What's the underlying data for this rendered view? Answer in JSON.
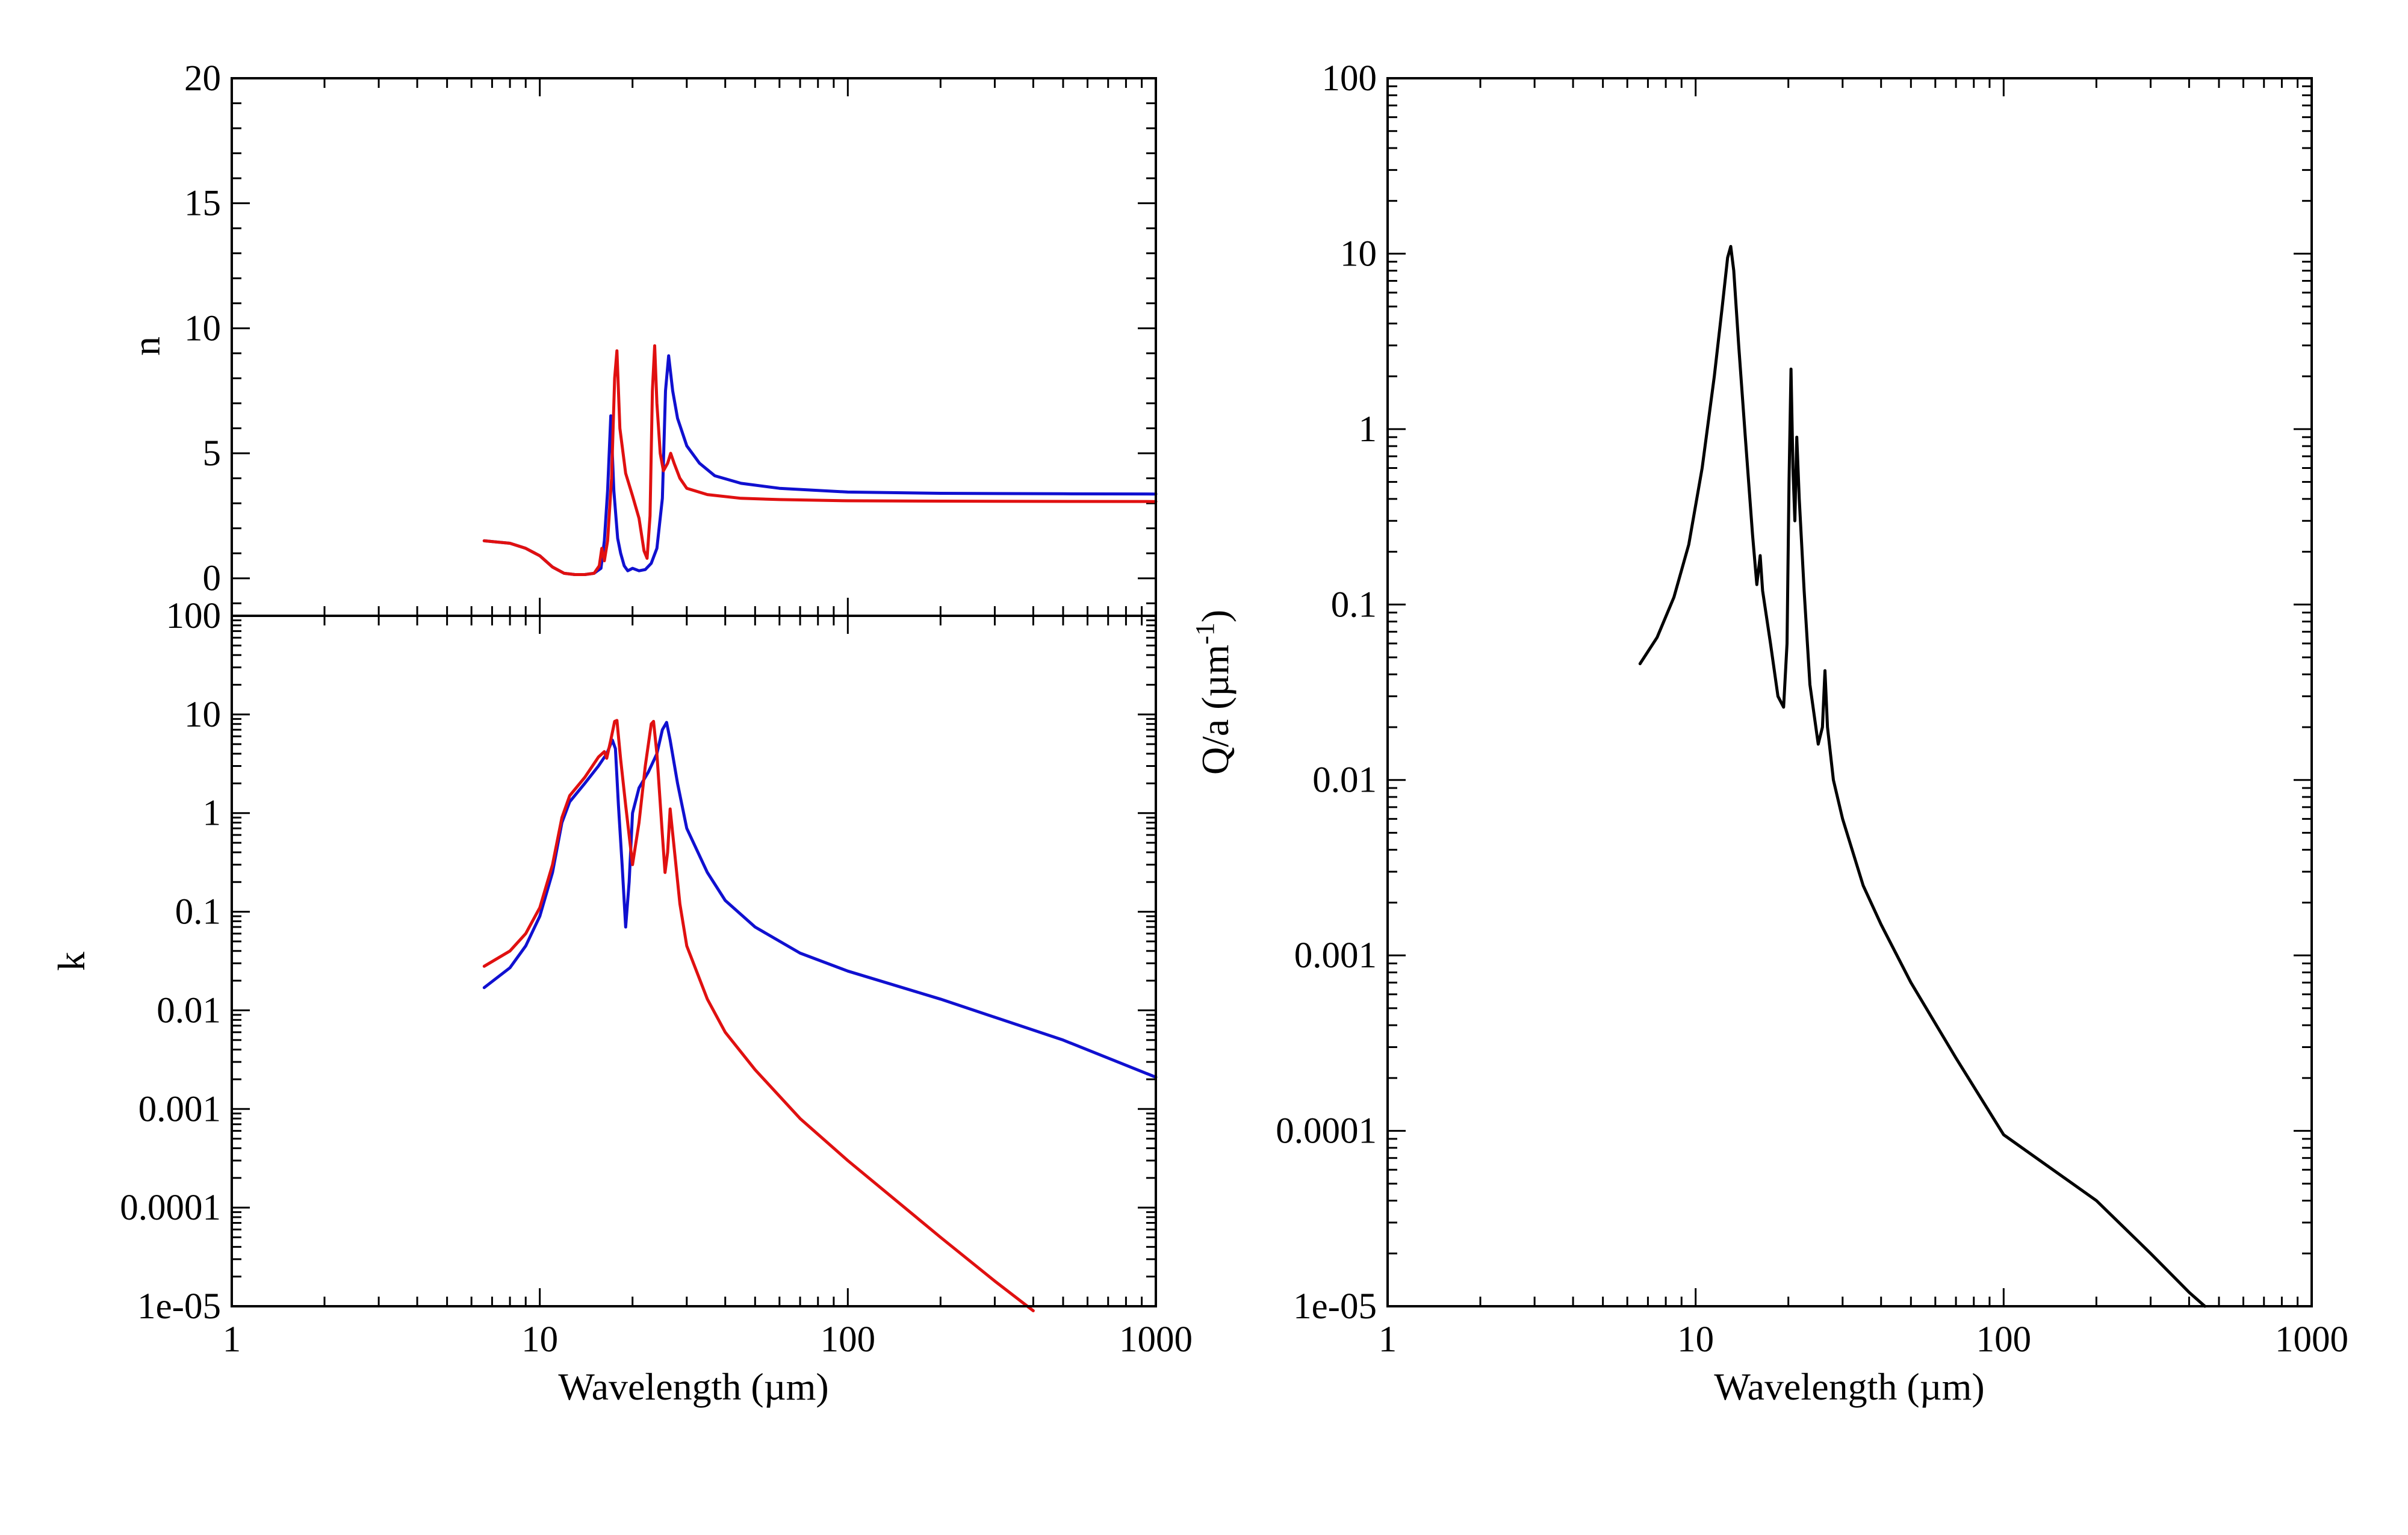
{
  "colors": {
    "blue": "#1010d0",
    "red": "#e01010",
    "black": "#000000"
  },
  "chart_data": [
    {
      "type": "line",
      "panel": "top-left",
      "title": "",
      "xlabel": "",
      "ylabel": "n",
      "xscale": "log",
      "yscale": "linear",
      "xlim": [
        1,
        1000
      ],
      "ylim": [
        -1.5,
        20
      ],
      "yticks": [
        0,
        5,
        10,
        15,
        20
      ],
      "yticklabels": [
        "0",
        "5",
        "10",
        "15",
        "20"
      ],
      "grid": false,
      "series": [
        {
          "color": "#1010d0",
          "points": [
            [
              6.6,
              1.5
            ],
            [
              8,
              1.4
            ],
            [
              9,
              1.2
            ],
            [
              10,
              0.9
            ],
            [
              11,
              0.45
            ],
            [
              12,
              0.2
            ],
            [
              13,
              0.15
            ],
            [
              14,
              0.15
            ],
            [
              15,
              0.2
            ],
            [
              15.8,
              0.4
            ],
            [
              16.2,
              1.5
            ],
            [
              16.6,
              3.5
            ],
            [
              17,
              6.5
            ],
            [
              17.4,
              3.5
            ],
            [
              17.9,
              1.6
            ],
            [
              18.3,
              1.0
            ],
            [
              18.8,
              0.5
            ],
            [
              19.3,
              0.3
            ],
            [
              20,
              0.4
            ],
            [
              21,
              0.3
            ],
            [
              22,
              0.35
            ],
            [
              23,
              0.6
            ],
            [
              24,
              1.2
            ],
            [
              25,
              3.2
            ],
            [
              25.6,
              7.5
            ],
            [
              26.2,
              8.9
            ],
            [
              27,
              7.5
            ],
            [
              28,
              6.4
            ],
            [
              30,
              5.3
            ],
            [
              33,
              4.6
            ],
            [
              37,
              4.1
            ],
            [
              45,
              3.8
            ],
            [
              60,
              3.6
            ],
            [
              100,
              3.45
            ],
            [
              200,
              3.4
            ],
            [
              500,
              3.38
            ],
            [
              1000,
              3.37
            ]
          ]
        },
        {
          "color": "#e01010",
          "points": [
            [
              6.6,
              1.5
            ],
            [
              8,
              1.4
            ],
            [
              9,
              1.2
            ],
            [
              10,
              0.9
            ],
            [
              11,
              0.45
            ],
            [
              12,
              0.2
            ],
            [
              13,
              0.15
            ],
            [
              14,
              0.15
            ],
            [
              15,
              0.2
            ],
            [
              15.6,
              0.5
            ],
            [
              15.9,
              1.2
            ],
            [
              16.2,
              0.7
            ],
            [
              16.6,
              1.5
            ],
            [
              17.1,
              4.0
            ],
            [
              17.5,
              8.0
            ],
            [
              17.8,
              9.1
            ],
            [
              18.2,
              6.0
            ],
            [
              19,
              4.2
            ],
            [
              20,
              3.3
            ],
            [
              21,
              2.4
            ],
            [
              21.8,
              1.1
            ],
            [
              22.3,
              0.8
            ],
            [
              22.8,
              2.5
            ],
            [
              23.2,
              7.5
            ],
            [
              23.6,
              9.3
            ],
            [
              24,
              7.0
            ],
            [
              24.6,
              5.0
            ],
            [
              25.2,
              4.3
            ],
            [
              26,
              4.6
            ],
            [
              26.6,
              5.0
            ],
            [
              27.3,
              4.6
            ],
            [
              28.5,
              4.0
            ],
            [
              30,
              3.6
            ],
            [
              35,
              3.35
            ],
            [
              45,
              3.2
            ],
            [
              60,
              3.15
            ],
            [
              100,
              3.1
            ],
            [
              300,
              3.08
            ],
            [
              1000,
              3.07
            ]
          ]
        }
      ]
    },
    {
      "type": "line",
      "panel": "bottom-left",
      "title": "",
      "xlabel": "Wavelength (µm)",
      "ylabel": "k",
      "xscale": "log",
      "yscale": "log",
      "xlim": [
        1,
        1000
      ],
      "ylim": [
        1e-05,
        100
      ],
      "xticks": [
        1,
        10,
        100,
        1000
      ],
      "xticklabels": [
        "1",
        "10",
        "100",
        "1000"
      ],
      "yticks": [
        1e-05,
        0.0001,
        0.001,
        0.01,
        0.1,
        1,
        10,
        100
      ],
      "yticklabels": [
        "1e-05",
        "0.0001",
        "0.001",
        "0.01",
        "0.1",
        "1",
        "10",
        "100"
      ],
      "grid": false,
      "series": [
        {
          "color": "#1010d0",
          "points": [
            [
              6.6,
              0.017
            ],
            [
              8,
              0.027
            ],
            [
              9,
              0.045
            ],
            [
              10,
              0.09
            ],
            [
              11,
              0.25
            ],
            [
              11.8,
              0.8
            ],
            [
              12.5,
              1.3
            ],
            [
              14,
              2.0
            ],
            [
              15.5,
              3.0
            ],
            [
              16.5,
              4.0
            ],
            [
              17.2,
              5.5
            ],
            [
              17.6,
              4.5
            ],
            [
              18,
              1.2
            ],
            [
              18.5,
              0.3
            ],
            [
              19,
              0.07
            ],
            [
              19.5,
              0.2
            ],
            [
              20,
              1.0
            ],
            [
              21,
              1.8
            ],
            [
              22.5,
              2.6
            ],
            [
              24,
              4.0
            ],
            [
              25,
              7.0
            ],
            [
              25.8,
              8.3
            ],
            [
              26.5,
              5.5
            ],
            [
              28,
              2.0
            ],
            [
              30,
              0.7
            ],
            [
              35,
              0.25
            ],
            [
              40,
              0.13
            ],
            [
              50,
              0.07
            ],
            [
              70,
              0.038
            ],
            [
              100,
              0.025
            ],
            [
              200,
              0.013
            ],
            [
              500,
              0.005
            ],
            [
              1000,
              0.0021
            ]
          ]
        },
        {
          "color": "#e01010",
          "points": [
            [
              6.6,
              0.028
            ],
            [
              8,
              0.04
            ],
            [
              9,
              0.06
            ],
            [
              10,
              0.11
            ],
            [
              11,
              0.3
            ],
            [
              11.8,
              0.9
            ],
            [
              12.5,
              1.5
            ],
            [
              14,
              2.3
            ],
            [
              15.5,
              3.7
            ],
            [
              16.2,
              4.2
            ],
            [
              16.5,
              3.6
            ],
            [
              17,
              5.5
            ],
            [
              17.5,
              8.5
            ],
            [
              17.8,
              8.7
            ],
            [
              18.3,
              3.5
            ],
            [
              19,
              1.2
            ],
            [
              20,
              0.3
            ],
            [
              21,
              0.8
            ],
            [
              22,
              3.0
            ],
            [
              23,
              8.0
            ],
            [
              23.4,
              8.5
            ],
            [
              24,
              4.0
            ],
            [
              25,
              0.6
            ],
            [
              25.5,
              0.25
            ],
            [
              26,
              0.4
            ],
            [
              26.5,
              1.1
            ],
            [
              27.2,
              0.5
            ],
            [
              28.5,
              0.12
            ],
            [
              30,
              0.045
            ],
            [
              35,
              0.013
            ],
            [
              40,
              0.006
            ],
            [
              50,
              0.0025
            ],
            [
              70,
              0.0008
            ],
            [
              100,
              0.0003
            ],
            [
              200,
              5e-05
            ],
            [
              300,
              1.8e-05
            ],
            [
              400,
              9e-06
            ]
          ]
        }
      ]
    },
    {
      "type": "line",
      "panel": "right",
      "title": "",
      "xlabel": "Wavelength (µm)",
      "ylabel_main": "Q/a (µm",
      "ylabel_sup": "-1",
      "ylabel_end": ")",
      "xscale": "log",
      "yscale": "log",
      "xlim": [
        1,
        1000
      ],
      "ylim": [
        1e-05,
        100
      ],
      "xticks": [
        1,
        10,
        100,
        1000
      ],
      "xticklabels": [
        "1",
        "10",
        "100",
        "1000"
      ],
      "yticks": [
        1e-05,
        0.0001,
        0.001,
        0.01,
        0.1,
        1,
        10,
        100
      ],
      "yticklabels": [
        "1e-05",
        "0.0001",
        "0.001",
        "0.01",
        "0.1",
        "1",
        "10",
        "100"
      ],
      "grid": false,
      "series": [
        {
          "color": "#000000",
          "points": [
            [
              6.6,
              0.046
            ],
            [
              7.5,
              0.065
            ],
            [
              8.5,
              0.11
            ],
            [
              9.5,
              0.22
            ],
            [
              10.5,
              0.6
            ],
            [
              11.5,
              2.0
            ],
            [
              12.2,
              5.0
            ],
            [
              12.7,
              9.5
            ],
            [
              13,
              11.0
            ],
            [
              13.3,
              8.0
            ],
            [
              13.8,
              3.0
            ],
            [
              14.5,
              0.9
            ],
            [
              15.3,
              0.25
            ],
            [
              15.8,
              0.13
            ],
            [
              16.2,
              0.19
            ],
            [
              16.5,
              0.12
            ],
            [
              17.5,
              0.06
            ],
            [
              18.5,
              0.03
            ],
            [
              19.3,
              0.026
            ],
            [
              19.8,
              0.06
            ],
            [
              20.1,
              0.5
            ],
            [
              20.4,
              2.2
            ],
            [
              20.7,
              0.6
            ],
            [
              21,
              0.3
            ],
            [
              21.3,
              0.9
            ],
            [
              21.7,
              0.4
            ],
            [
              22.5,
              0.12
            ],
            [
              23.5,
              0.035
            ],
            [
              25,
              0.016
            ],
            [
              25.8,
              0.02
            ],
            [
              26.3,
              0.042
            ],
            [
              26.8,
              0.02
            ],
            [
              28,
              0.01
            ],
            [
              30,
              0.006
            ],
            [
              35,
              0.0025
            ],
            [
              40,
              0.0015
            ],
            [
              50,
              0.0007
            ],
            [
              70,
              0.00026
            ],
            [
              100,
              9.5e-05
            ],
            [
              200,
              4e-05
            ],
            [
              300,
              2e-05
            ],
            [
              400,
              1.2e-05
            ],
            [
              450,
              1e-05
            ]
          ]
        }
      ]
    }
  ]
}
